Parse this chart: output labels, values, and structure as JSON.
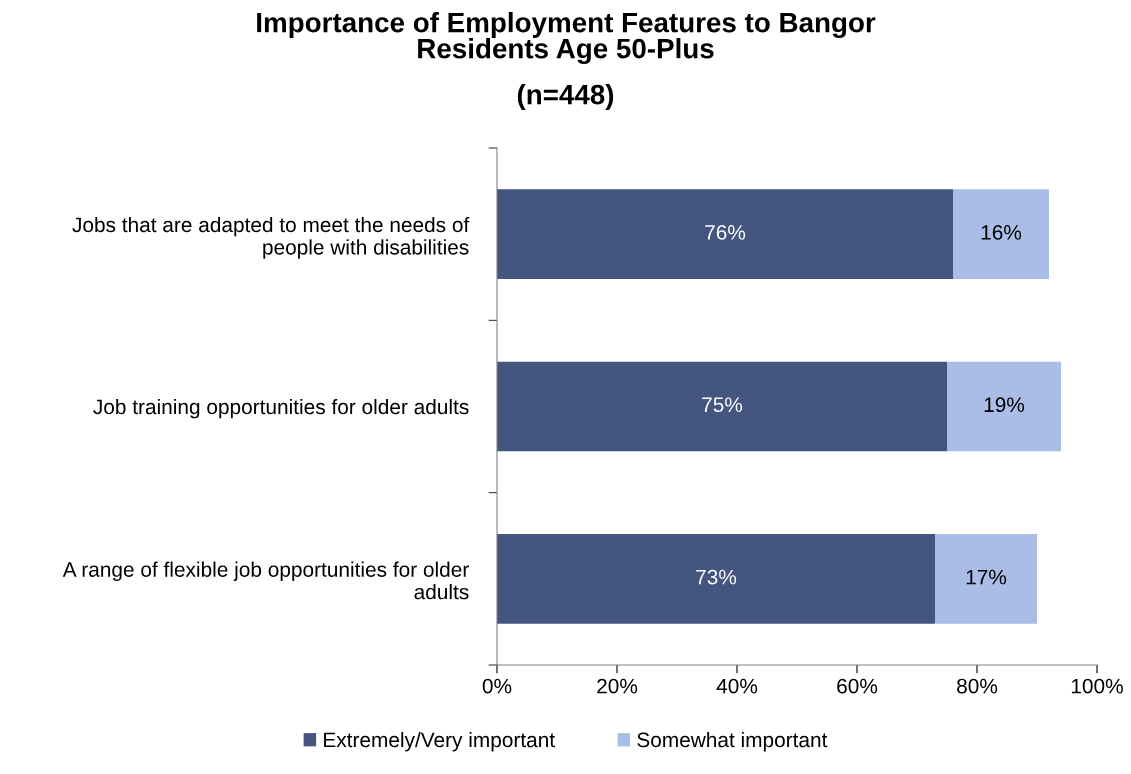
{
  "chart_data": {
    "type": "bar",
    "orientation": "horizontal",
    "stacked": true,
    "title": "Importance of Employment Features to Bangor\nResidents Age 50-Plus",
    "subtitle": "(n=448)",
    "categories": [
      "Jobs that are adapted to meet the needs of\npeople with disabilities",
      "Job training opportunities for older adults",
      "A range of flexible job opportunities for older\nadults"
    ],
    "series": [
      {
        "name": "Extremely/Very important",
        "color": "#44557f",
        "values": [
          76,
          75,
          73
        ],
        "value_labels": [
          "76%",
          "75%",
          "73%"
        ]
      },
      {
        "name": "Somewhat important",
        "color": "#a9bde6",
        "values": [
          16,
          19,
          17
        ],
        "value_labels": [
          "16%",
          "19%",
          "17%"
        ]
      }
    ],
    "xlim": [
      0,
      100
    ],
    "xticks": [
      {
        "value": 0,
        "label": "0%"
      },
      {
        "value": 20,
        "label": "20%"
      },
      {
        "value": 40,
        "label": "40%"
      },
      {
        "value": 60,
        "label": "60%"
      },
      {
        "value": 80,
        "label": "80%"
      },
      {
        "value": 100,
        "label": "100%"
      }
    ],
    "grid": false,
    "legend": "bottom"
  }
}
